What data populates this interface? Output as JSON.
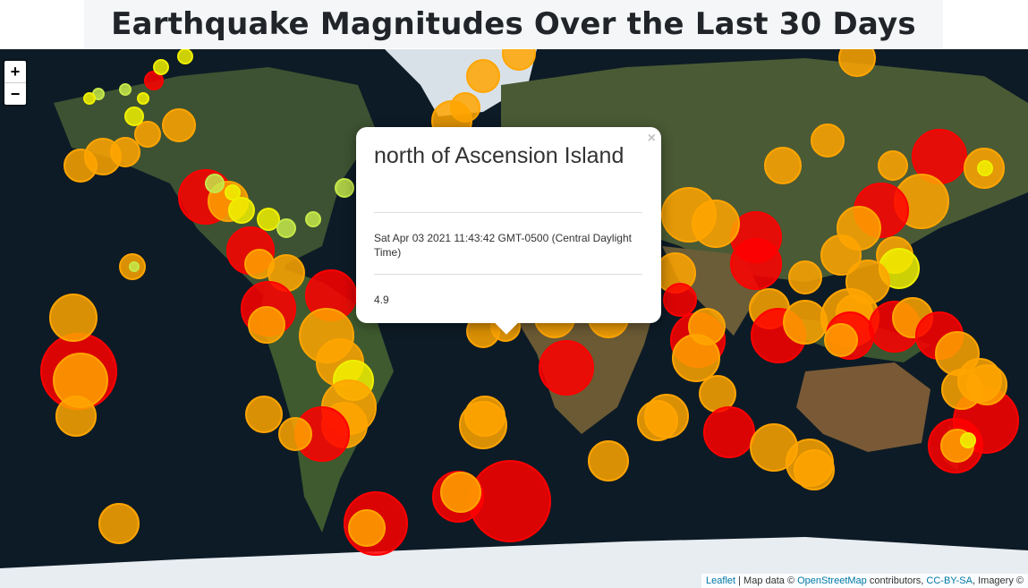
{
  "title": "Earthquake Magnitudes Over the Last 30 Days",
  "zoom": {
    "in_label": "+",
    "out_label": "−"
  },
  "popup": {
    "place": "north of Ascension Island",
    "time": "Sat Apr 03 2021 11:43:42 GMT-0500 (Central Daylight Time)",
    "magnitude": "4.9",
    "close_label": "×"
  },
  "attribution": {
    "leaflet": "Leaflet",
    "sep1": " | Map data © ",
    "osm": "OpenStreetMap",
    "contrib": " contributors, ",
    "license": "CC-BY-SA",
    "imagery": ", Imagery ©"
  },
  "colors": {
    "ocean": "#0d1b26",
    "land": "#3b4f33",
    "ice": "#e8edf2",
    "mag_low": "#c6e84a",
    "mag_mid_low": "#f0f000",
    "mag_mid": "#ffa500",
    "mag_high": "#ff4500",
    "mag_very_high": "#ff0000"
  }
}
